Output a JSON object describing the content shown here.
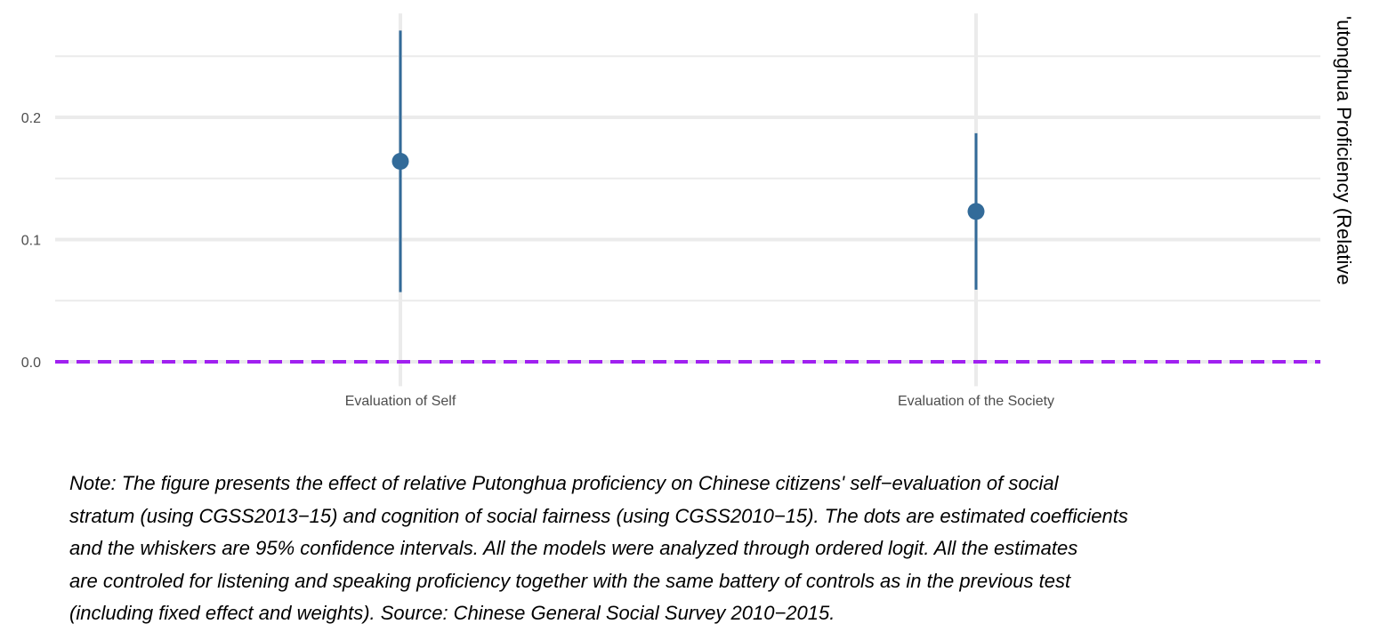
{
  "chart_data": {
    "type": "scatter",
    "subtype": "point-range",
    "categories": [
      "Evaluation of Self",
      "Evaluation of the Society"
    ],
    "series": [
      {
        "estimate": [
          0.164,
          0.123
        ],
        "ci_lower": [
          0.057,
          0.059
        ],
        "ci_upper": [
          0.271,
          0.187
        ]
      }
    ],
    "y_ticks": [
      "0.0",
      "0.1",
      "0.2"
    ],
    "y_tick_values": [
      0.0,
      0.1,
      0.2
    ],
    "ylim": [
      -0.02,
      0.285
    ],
    "ylabel_right": "'utonghua Proficiency (Relative",
    "reference_line": {
      "y": 0.0,
      "style": "dashed",
      "color": "#A020F0"
    },
    "grid": true,
    "colors": {
      "points": "#336B99",
      "grid": "#EBEBEB",
      "reference": "#A020F0"
    }
  },
  "note": {
    "lines": [
      "Note: The figure presents the effect of relative Putonghua proficiency on Chinese citizens' self−evaluation of social",
      "stratum (using CGSS2013−15) and cognition of social fairness (using CGSS2010−15). The dots are estimated coefficients",
      "and the whiskers are 95% confidence intervals. All the models were analyzed through ordered logit. All the estimates",
      "are controled for listening and speaking proficiency together with the same battery of controls as in the previous test",
      "(including fixed effect and weights). Source: Chinese General Social Survey 2010−2015."
    ]
  }
}
